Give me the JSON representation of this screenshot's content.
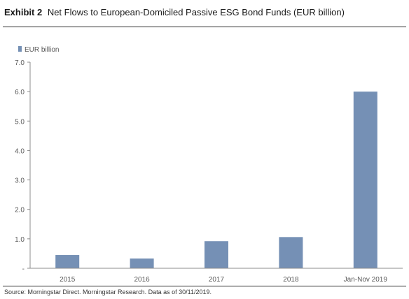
{
  "header": {
    "exhibit": "Exhibit 2",
    "title": "Net Flows to European-Domiciled Passive ESG Bond Funds (EUR billion)"
  },
  "footer": {
    "source": "Source: Morningstar Direct. Morningstar Research. Data as of 30/11/2019."
  },
  "colors": {
    "bar": "#7590b5",
    "axis": "#8c8c8c",
    "text": "#595959"
  },
  "chart_data": {
    "type": "bar",
    "categories": [
      "2015",
      "2016",
      "2017",
      "2018",
      "Jan-Nov 2019"
    ],
    "series": [
      {
        "name": "EUR billion",
        "values": [
          0.45,
          0.33,
          0.92,
          1.06,
          6.0
        ]
      }
    ],
    "ylim": [
      0,
      7
    ],
    "yticks": [
      {
        "value": 0,
        "label": "-"
      },
      {
        "value": 1,
        "label": "1.0"
      },
      {
        "value": 2,
        "label": "2.0"
      },
      {
        "value": 3,
        "label": "3.0"
      },
      {
        "value": 4,
        "label": "4.0"
      },
      {
        "value": 5,
        "label": "5.0"
      },
      {
        "value": 6,
        "label": "6.0"
      },
      {
        "value": 7,
        "label": "7.0"
      }
    ],
    "grid": false,
    "legend": "top-left"
  }
}
